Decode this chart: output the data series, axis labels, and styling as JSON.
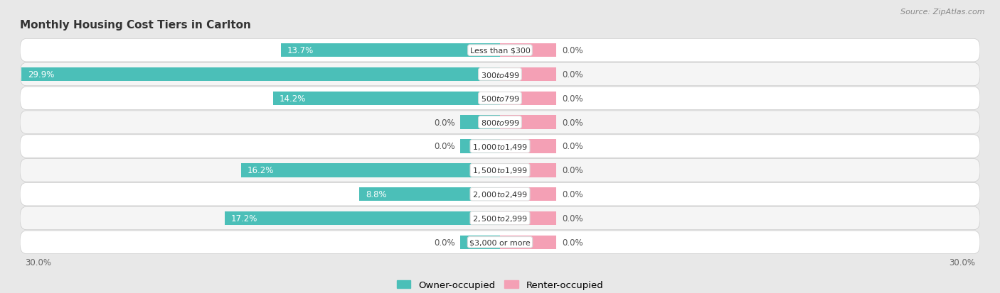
{
  "title": "Monthly Housing Cost Tiers in Carlton",
  "source": "Source: ZipAtlas.com",
  "categories": [
    "Less than $300",
    "$300 to $499",
    "$500 to $799",
    "$800 to $999",
    "$1,000 to $1,499",
    "$1,500 to $1,999",
    "$2,000 to $2,499",
    "$2,500 to $2,999",
    "$3,000 or more"
  ],
  "owner_values": [
    13.7,
    29.9,
    14.2,
    0.0,
    0.0,
    16.2,
    8.8,
    17.2,
    0.0
  ],
  "renter_values": [
    0.0,
    0.0,
    0.0,
    0.0,
    0.0,
    0.0,
    0.0,
    0.0,
    0.0
  ],
  "owner_color": "#4bbfb8",
  "renter_color": "#f4a0b5",
  "bg_color": "#e8e8e8",
  "row_color_odd": "#f5f5f5",
  "row_color_even": "#ffffff",
  "axis_limit": 30.0,
  "bar_height": 0.58,
  "renter_stub": 3.5,
  "owner_stub": 2.5,
  "label_fontsize": 8.5,
  "title_fontsize": 11,
  "source_fontsize": 8
}
